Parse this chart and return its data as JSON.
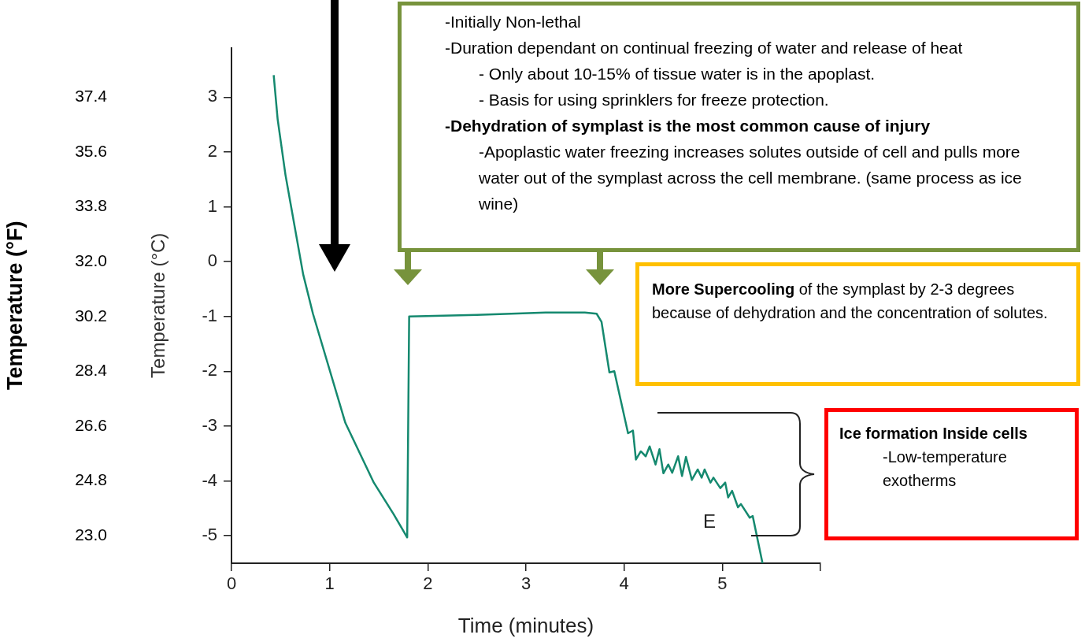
{
  "chart_data": {
    "type": "line",
    "xlabel": "Time (minutes)",
    "ylabel": "Temperature (°C)",
    "y2label": "Temperature (°F)",
    "x": [
      0.43,
      0.47,
      0.55,
      0.73,
      0.83,
      1.16,
      1.45,
      1.65,
      1.79,
      1.81,
      2.5,
      3.2,
      3.6,
      3.72,
      3.77,
      3.85,
      3.9,
      4.04,
      4.09,
      4.12,
      4.17,
      4.22,
      4.26,
      4.32,
      4.36,
      4.4,
      4.45,
      4.49,
      4.55,
      4.59,
      4.63,
      4.69,
      4.75,
      4.79,
      4.82,
      4.88,
      4.91,
      4.98,
      5.03,
      5.06,
      5.1,
      5.16,
      5.19,
      5.28,
      5.31,
      5.41
    ],
    "series": [
      {
        "color": "#15896f",
        "values": [
          3.4,
          2.6,
          1.58,
          -0.23,
          -0.95,
          -2.94,
          -4.03,
          -4.6,
          -5.03,
          -1.0,
          -0.97,
          -0.93,
          -0.93,
          -0.95,
          -1.1,
          -2.02,
          -2.0,
          -3.13,
          -3.08,
          -3.61,
          -3.46,
          -3.55,
          -3.37,
          -3.7,
          -3.42,
          -3.86,
          -3.7,
          -3.85,
          -3.55,
          -3.91,
          -3.56,
          -3.98,
          -3.79,
          -3.94,
          -3.79,
          -4.03,
          -3.94,
          -4.13,
          -4.03,
          -4.3,
          -4.18,
          -4.48,
          -4.42,
          -4.67,
          -4.64,
          -5.5
        ]
      }
    ],
    "xlim": [
      0,
      6
    ],
    "xticks": [
      0,
      1,
      2,
      3,
      4,
      5,
      {
        "value": 6,
        "label": null
      }
    ],
    "ylim": [
      -5.5,
      3.9
    ],
    "yticks": [
      -5,
      -4,
      -3,
      -2,
      -1,
      0,
      1,
      2,
      3
    ],
    "y2lim": [
      22.1,
      39.02
    ],
    "y2ticks": [
      {
        "value": 23,
        "label": "23.0"
      },
      24.8,
      26.6,
      28.4,
      30.2,
      {
        "value": 32,
        "label": "32.0"
      },
      33.8,
      35.6,
      37.4
    ],
    "grid": false,
    "legend": false,
    "marker": "none",
    "line_style": "solid",
    "annotations": [
      "-Initially Non-lethal",
      "-Duration dependant on continual freezing of water and release of heat",
      "- Only about 10-15% of tissue water is in the apoplast.",
      "- Basis for using sprinklers for freeze protection.",
      "-Dehydration of symplast is the most common cause of injury",
      "-Apoplastic water freezing increases solutes outside of cell and pulls more water out of the symplast across the cell membrane. (same process as ice wine)",
      "More Supercooling",
      " of the symplast by 2-3 degrees because of dehydration and the concentration of solutes.",
      "Ice formation Inside cells",
      "-Low-temperature exotherms",
      "E"
    ]
  }
}
